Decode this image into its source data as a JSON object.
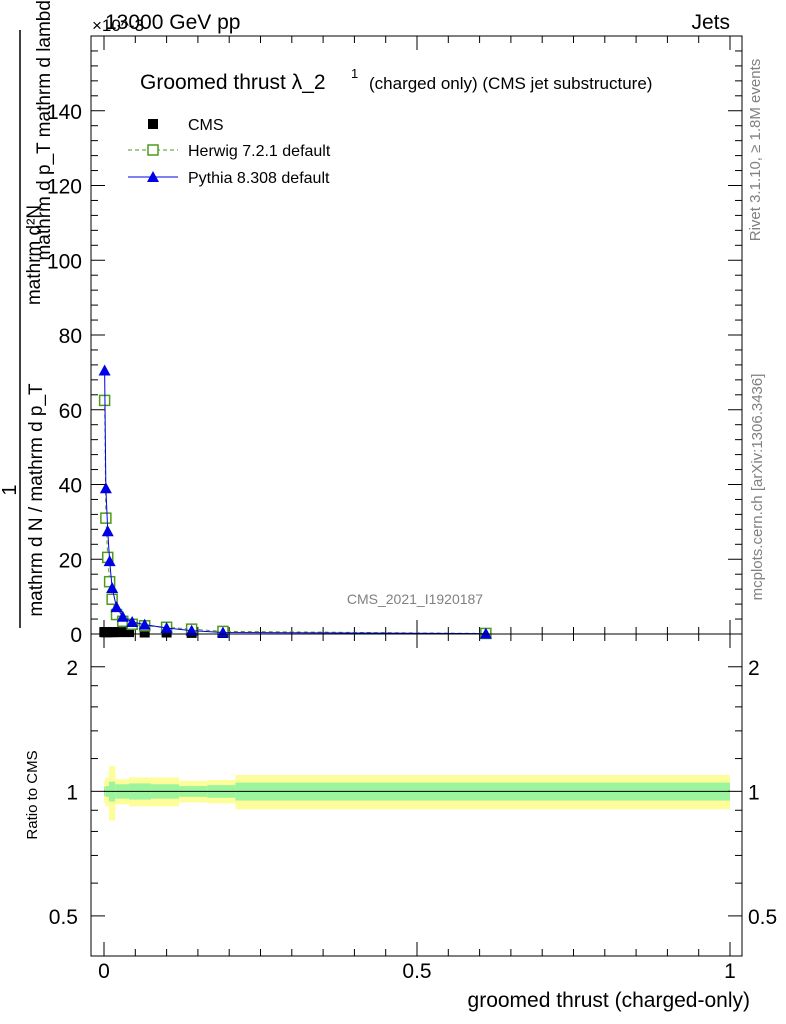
{
  "header": {
    "left": "13000 GeV pp",
    "right": "Jets",
    "exponent": "×10^-3"
  },
  "side": {
    "rivet": "Rivet 3.1.10, ≥ 1.8M events",
    "mcplots": "mcplots.cern.ch [arXiv:1306.3436]"
  },
  "watermark": "CMS_2021_I1920187",
  "chart_data": [
    {
      "type": "line",
      "title": "Groomed thrust λ_2^1 (charged only) (CMS jet substructure)",
      "title_main": "Groomed thrust λ_2",
      "title_sup": "1",
      "title_rest": "(charged only) (CMS jet substructure)",
      "ylabel_numerator_top": "mathrm d²N",
      "ylabel_numerator_bottom": "mathrm d p_T mathrm d lambda",
      "ylabel_one": "1",
      "ylabel_denominator": "mathrm d N / mathrm d p_T",
      "xlabel": "groomed thrust (charged-only)",
      "xlim": [
        0,
        1
      ],
      "ylim": [
        0,
        160
      ],
      "y_unit_scale": "×10^-3",
      "yticks": [
        0,
        20,
        40,
        60,
        80,
        100,
        120,
        140
      ],
      "xticks": [
        "0",
        "0.5",
        "1"
      ],
      "legend_position": "top-left",
      "series": [
        {
          "name": "CMS",
          "color": "#000000",
          "marker": "square-filled",
          "x": [
            0.0005,
            0.0015,
            0.003,
            0.005,
            0.0075,
            0.011,
            0.016,
            0.025,
            0.04,
            0.065,
            0.1,
            0.14,
            0.19,
            0.61
          ],
          "y": [
            0.5,
            0.5,
            0.5,
            0.5,
            0.5,
            0.5,
            0.5,
            0.5,
            0.5,
            0.4,
            0.4,
            0.3,
            0.2,
            0.05
          ]
        },
        {
          "name": "Herwig 7.2.1 default",
          "color": "#4d9a1c",
          "marker": "square-open",
          "line": "dashed",
          "x": [
            0.001,
            0.003,
            0.006,
            0.009,
            0.013,
            0.02,
            0.03,
            0.045,
            0.065,
            0.1,
            0.14,
            0.19,
            0.61
          ],
          "y": [
            62.5,
            31,
            20.5,
            14,
            9.3,
            5.2,
            3.4,
            2.6,
            2.2,
            1.8,
            1.3,
            0.7,
            0.15
          ]
        },
        {
          "name": "Pythia 8.308 default",
          "color": "#0000e6",
          "marker": "triangle-filled",
          "line": "solid",
          "x": [
            0.001,
            0.003,
            0.006,
            0.009,
            0.013,
            0.02,
            0.03,
            0.045,
            0.065,
            0.1,
            0.14,
            0.19,
            0.61
          ],
          "y": [
            70.5,
            39,
            27.5,
            19.5,
            12.3,
            7.2,
            4.6,
            3.2,
            2.5,
            1.6,
            0.9,
            0.4,
            0.1
          ]
        }
      ]
    },
    {
      "type": "area",
      "ylabel": "Ratio to CMS",
      "xlabel": "groomed thrust (charged-only)",
      "xlim": [
        0,
        1
      ],
      "ylim": [
        0.4,
        2.4
      ],
      "log_y": true,
      "yticks": [
        "0.5",
        "1",
        "2"
      ],
      "xticks": [
        "0",
        "0.5",
        "1"
      ],
      "reference": 1,
      "band_colors": {
        "inner": "#9cf59c",
        "outer": "#fdfd9a"
      },
      "bins": [
        {
          "x0": 0.0,
          "x1": 0.002,
          "inner": 0.025,
          "outer": 0.06
        },
        {
          "x0": 0.002,
          "x1": 0.008,
          "inner": 0.03,
          "outer": 0.08
        },
        {
          "x0": 0.008,
          "x1": 0.018,
          "inner": 0.055,
          "outer": 0.15
        },
        {
          "x0": 0.018,
          "x1": 0.04,
          "inner": 0.04,
          "outer": 0.07
        },
        {
          "x0": 0.04,
          "x1": 0.075,
          "inner": 0.045,
          "outer": 0.08
        },
        {
          "x0": 0.075,
          "x1": 0.12,
          "inner": 0.04,
          "outer": 0.08
        },
        {
          "x0": 0.12,
          "x1": 0.165,
          "inner": 0.03,
          "outer": 0.06
        },
        {
          "x0": 0.165,
          "x1": 0.21,
          "inner": 0.035,
          "outer": 0.065
        },
        {
          "x0": 0.21,
          "x1": 1.0,
          "inner": 0.05,
          "outer": 0.095
        }
      ]
    }
  ]
}
